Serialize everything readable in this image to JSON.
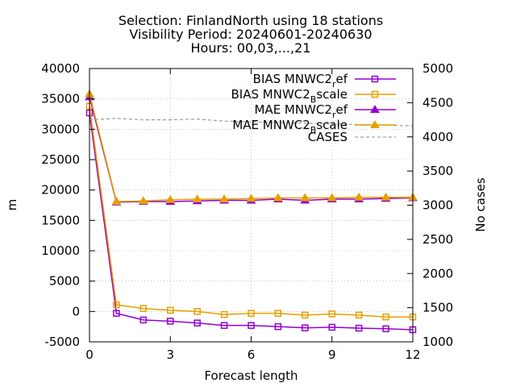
{
  "chart_data": {
    "type": "line",
    "title_lines": [
      "Selection: FinlandNorth using    18 stations",
      "Visibility   Period: 20240601-20240630",
      "Hours: 00,03,...,21"
    ],
    "xlabel": "Forecast length",
    "ylabel": "m",
    "y2label": "No cases",
    "xlim": [
      0,
      12
    ],
    "ylim": [
      -5000,
      40000
    ],
    "y2lim": [
      1000,
      5000
    ],
    "xticks": [
      0,
      3,
      6,
      9,
      12
    ],
    "yticks": [
      -5000,
      0,
      5000,
      10000,
      15000,
      20000,
      25000,
      30000,
      35000,
      40000
    ],
    "y2ticks": [
      1000,
      1500,
      2000,
      2500,
      3000,
      3500,
      4000,
      4500,
      5000
    ],
    "grid": true,
    "legend_position": "top-right",
    "x": [
      0,
      1,
      2,
      3,
      4,
      5,
      6,
      7,
      8,
      9,
      10,
      11,
      12
    ],
    "series": [
      {
        "legend_main": "BIAS MNWC2",
        "legend_sub": "r",
        "legend_rest": "ef",
        "color": "#9400d3",
        "marker": "square",
        "axis": "y",
        "values": [
          32700,
          -300,
          -1400,
          -1600,
          -1900,
          -2300,
          -2300,
          -2500,
          -2700,
          -2600,
          -2750,
          -2850,
          -3000
        ]
      },
      {
        "legend_main": "BIAS MNWC2",
        "legend_sub": "B",
        "legend_rest": "scale",
        "color": "#e69f00",
        "marker": "square",
        "axis": "y",
        "values": [
          33800,
          1100,
          500,
          200,
          0,
          -500,
          -300,
          -300,
          -600,
          -400,
          -600,
          -900,
          -900
        ]
      },
      {
        "legend_main": "MAE MNWC2",
        "legend_sub": "r",
        "legend_rest": "ef",
        "color": "#9400d3",
        "marker": "triangle",
        "axis": "y",
        "values": [
          35300,
          18000,
          18100,
          18100,
          18200,
          18300,
          18300,
          18500,
          18300,
          18500,
          18500,
          18600,
          18700
        ]
      },
      {
        "legend_main": "MAE MNWC2",
        "legend_sub": "B",
        "legend_rest": "scale",
        "color": "#e69f00",
        "marker": "triangle",
        "axis": "y",
        "values": [
          35800,
          18100,
          18200,
          18400,
          18500,
          18500,
          18600,
          18700,
          18700,
          18700,
          18800,
          18800,
          18800
        ]
      },
      {
        "legend_main": "CASES",
        "legend_sub": "",
        "legend_rest": "",
        "color": "#a0a0a0",
        "marker": "none",
        "dashed": true,
        "axis": "y2",
        "values": [
          4250,
          4270,
          4250,
          4250,
          4260,
          4230,
          4220,
          4210,
          4200,
          4190,
          4180,
          4170,
          4160
        ]
      }
    ]
  }
}
